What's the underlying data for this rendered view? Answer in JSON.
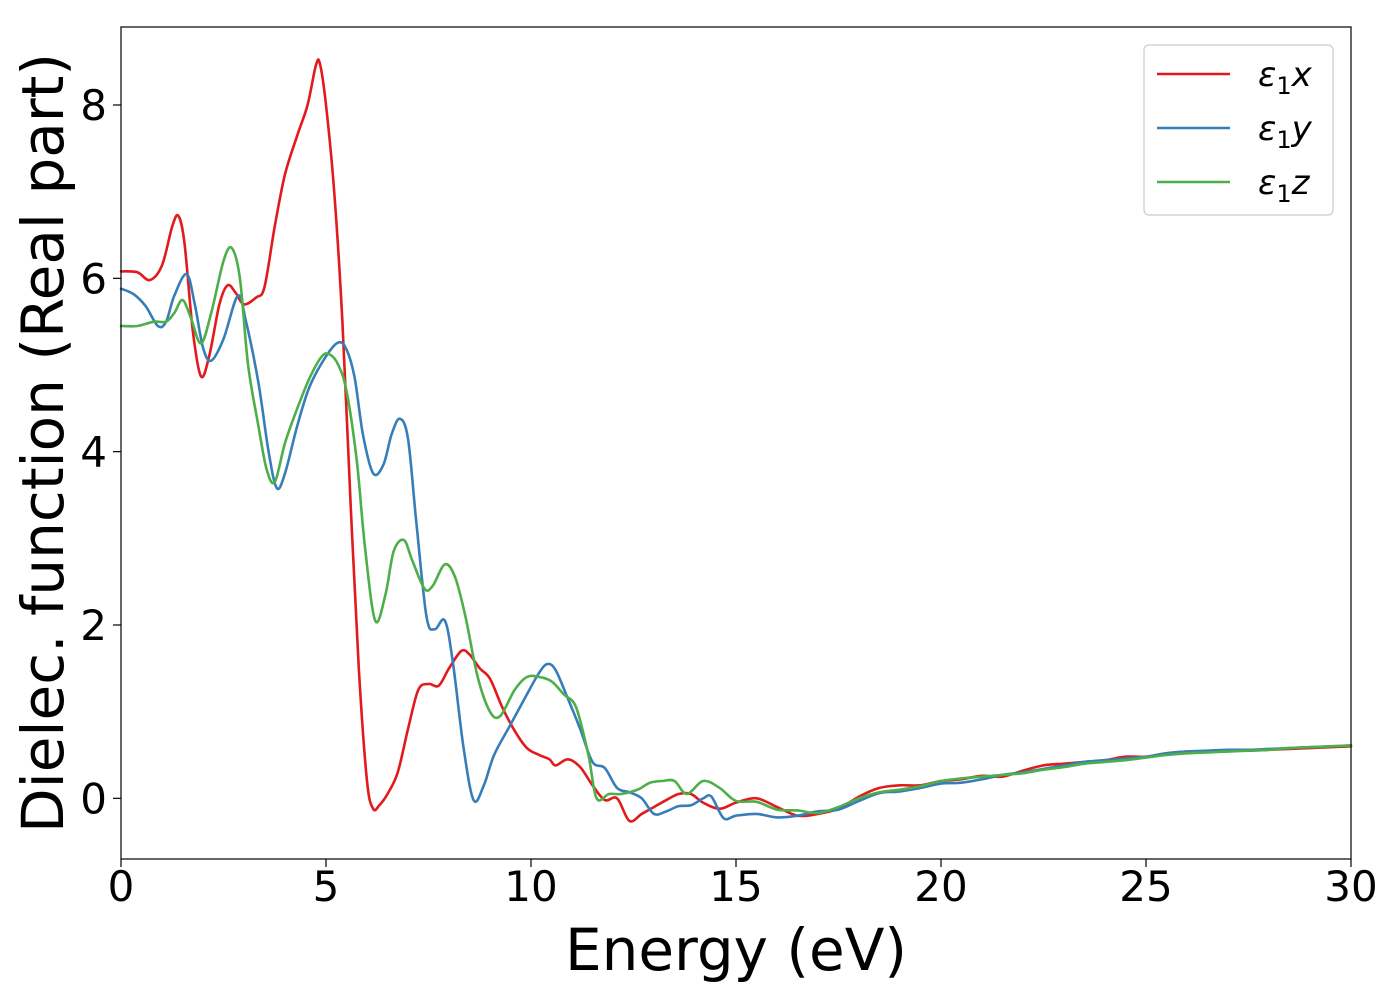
{
  "chart_data": {
    "type": "line",
    "title": "",
    "xlabel": "Energy (eV)",
    "ylabel": "Dielec. function (Real part)",
    "xlim": [
      0,
      30
    ],
    "ylim": [
      -0.7,
      8.9
    ],
    "xticks": [
      0,
      5,
      10,
      15,
      20,
      25,
      30
    ],
    "yticks": [
      0,
      2,
      4,
      6,
      8
    ],
    "grid": false,
    "legend_position": "top-right",
    "series": [
      {
        "name": "ε1x",
        "legend_base": "ε",
        "legend_sub": "1",
        "legend_var": "x",
        "color": "#e31a1c",
        "points": [
          [
            0,
            6.08
          ],
          [
            0.4,
            6.07
          ],
          [
            0.7,
            5.98
          ],
          [
            1.0,
            6.15
          ],
          [
            1.25,
            6.6
          ],
          [
            1.4,
            6.72
          ],
          [
            1.55,
            6.4
          ],
          [
            1.75,
            5.4
          ],
          [
            1.95,
            4.87
          ],
          [
            2.15,
            5.1
          ],
          [
            2.4,
            5.7
          ],
          [
            2.6,
            5.92
          ],
          [
            2.8,
            5.83
          ],
          [
            3.0,
            5.7
          ],
          [
            3.3,
            5.78
          ],
          [
            3.5,
            5.9
          ],
          [
            3.75,
            6.6
          ],
          [
            4.0,
            7.2
          ],
          [
            4.3,
            7.65
          ],
          [
            4.55,
            8.0
          ],
          [
            4.75,
            8.45
          ],
          [
            4.85,
            8.48
          ],
          [
            5.0,
            8.0
          ],
          [
            5.2,
            7.0
          ],
          [
            5.4,
            5.5
          ],
          [
            5.6,
            3.4
          ],
          [
            5.8,
            1.5
          ],
          [
            6.0,
            0.2
          ],
          [
            6.15,
            -0.12
          ],
          [
            6.3,
            -0.08
          ],
          [
            6.5,
            0.05
          ],
          [
            6.75,
            0.3
          ],
          [
            7.0,
            0.8
          ],
          [
            7.25,
            1.25
          ],
          [
            7.5,
            1.32
          ],
          [
            7.75,
            1.3
          ],
          [
            8.0,
            1.5
          ],
          [
            8.3,
            1.7
          ],
          [
            8.5,
            1.66
          ],
          [
            8.75,
            1.5
          ],
          [
            9.0,
            1.38
          ],
          [
            9.3,
            1.05
          ],
          [
            9.6,
            0.78
          ],
          [
            9.9,
            0.58
          ],
          [
            10.2,
            0.5
          ],
          [
            10.45,
            0.45
          ],
          [
            10.6,
            0.38
          ],
          [
            10.9,
            0.45
          ],
          [
            11.2,
            0.36
          ],
          [
            11.5,
            0.15
          ],
          [
            11.8,
            -0.02
          ],
          [
            12.1,
            0.0
          ],
          [
            12.4,
            -0.26
          ],
          [
            12.7,
            -0.18
          ],
          [
            13.0,
            -0.1
          ],
          [
            13.3,
            -0.02
          ],
          [
            13.6,
            0.05
          ],
          [
            13.9,
            0.05
          ],
          [
            14.2,
            -0.05
          ],
          [
            14.6,
            -0.12
          ],
          [
            15.0,
            -0.05
          ],
          [
            15.5,
            0.0
          ],
          [
            16.0,
            -0.1
          ],
          [
            16.5,
            -0.2
          ],
          [
            17.0,
            -0.18
          ],
          [
            17.5,
            -0.12
          ],
          [
            18.0,
            0.02
          ],
          [
            18.5,
            0.12
          ],
          [
            19.0,
            0.15
          ],
          [
            19.5,
            0.15
          ],
          [
            20.0,
            0.2
          ],
          [
            20.5,
            0.22
          ],
          [
            21.0,
            0.26
          ],
          [
            21.5,
            0.25
          ],
          [
            22.0,
            0.32
          ],
          [
            22.5,
            0.38
          ],
          [
            23.0,
            0.4
          ],
          [
            23.5,
            0.42
          ],
          [
            24.0,
            0.44
          ],
          [
            24.5,
            0.48
          ],
          [
            25.0,
            0.48
          ],
          [
            25.5,
            0.52
          ],
          [
            26.0,
            0.54
          ],
          [
            26.5,
            0.54
          ],
          [
            27.0,
            0.55
          ],
          [
            27.5,
            0.55
          ],
          [
            28.0,
            0.56
          ],
          [
            28.5,
            0.57
          ],
          [
            29.0,
            0.58
          ],
          [
            29.5,
            0.59
          ],
          [
            30.0,
            0.6
          ]
        ]
      },
      {
        "name": "ε1y",
        "legend_base": "ε",
        "legend_sub": "1",
        "legend_var": "y",
        "color": "#377eb8",
        "points": [
          [
            0,
            5.88
          ],
          [
            0.3,
            5.82
          ],
          [
            0.6,
            5.68
          ],
          [
            0.9,
            5.45
          ],
          [
            1.1,
            5.5
          ],
          [
            1.3,
            5.8
          ],
          [
            1.6,
            6.05
          ],
          [
            1.8,
            5.7
          ],
          [
            2.0,
            5.2
          ],
          [
            2.2,
            5.05
          ],
          [
            2.5,
            5.3
          ],
          [
            2.85,
            5.8
          ],
          [
            3.05,
            5.5
          ],
          [
            3.35,
            4.8
          ],
          [
            3.6,
            4.0
          ],
          [
            3.8,
            3.58
          ],
          [
            4.0,
            3.75
          ],
          [
            4.3,
            4.3
          ],
          [
            4.6,
            4.75
          ],
          [
            5.0,
            5.1
          ],
          [
            5.3,
            5.26
          ],
          [
            5.5,
            5.18
          ],
          [
            5.7,
            4.85
          ],
          [
            5.9,
            4.2
          ],
          [
            6.15,
            3.75
          ],
          [
            6.4,
            3.85
          ],
          [
            6.6,
            4.2
          ],
          [
            6.8,
            4.38
          ],
          [
            7.0,
            4.15
          ],
          [
            7.2,
            3.2
          ],
          [
            7.45,
            2.1
          ],
          [
            7.65,
            1.95
          ],
          [
            7.9,
            2.05
          ],
          [
            8.1,
            1.55
          ],
          [
            8.35,
            0.6
          ],
          [
            8.6,
            -0.02
          ],
          [
            8.85,
            0.15
          ],
          [
            9.1,
            0.5
          ],
          [
            9.5,
            0.85
          ],
          [
            9.9,
            1.2
          ],
          [
            10.2,
            1.45
          ],
          [
            10.4,
            1.55
          ],
          [
            10.6,
            1.48
          ],
          [
            10.9,
            1.15
          ],
          [
            11.2,
            0.8
          ],
          [
            11.5,
            0.42
          ],
          [
            11.8,
            0.35
          ],
          [
            12.1,
            0.12
          ],
          [
            12.4,
            0.07
          ],
          [
            12.7,
            0.0
          ],
          [
            13.0,
            -0.18
          ],
          [
            13.3,
            -0.15
          ],
          [
            13.6,
            -0.09
          ],
          [
            13.9,
            -0.08
          ],
          [
            14.2,
            0.0
          ],
          [
            14.4,
            0.02
          ],
          [
            14.7,
            -0.23
          ],
          [
            15.0,
            -0.2
          ],
          [
            15.5,
            -0.18
          ],
          [
            16.0,
            -0.22
          ],
          [
            16.5,
            -0.2
          ],
          [
            17.0,
            -0.15
          ],
          [
            17.5,
            -0.13
          ],
          [
            18.0,
            -0.03
          ],
          [
            18.5,
            0.06
          ],
          [
            19.0,
            0.08
          ],
          [
            19.5,
            0.12
          ],
          [
            20.0,
            0.17
          ],
          [
            20.5,
            0.18
          ],
          [
            21.0,
            0.22
          ],
          [
            21.5,
            0.27
          ],
          [
            22.0,
            0.3
          ],
          [
            22.5,
            0.34
          ],
          [
            23.0,
            0.38
          ],
          [
            23.5,
            0.42
          ],
          [
            24.0,
            0.44
          ],
          [
            24.5,
            0.46
          ],
          [
            25.0,
            0.48
          ],
          [
            25.5,
            0.52
          ],
          [
            26.0,
            0.54
          ],
          [
            26.5,
            0.55
          ],
          [
            27.0,
            0.56
          ],
          [
            27.5,
            0.56
          ],
          [
            28.0,
            0.57
          ],
          [
            28.5,
            0.58
          ],
          [
            29.0,
            0.59
          ],
          [
            29.5,
            0.6
          ],
          [
            30.0,
            0.61
          ]
        ]
      },
      {
        "name": "ε1z",
        "legend_base": "ε",
        "legend_sub": "1",
        "legend_var": "z",
        "color": "#4daf4a",
        "points": [
          [
            0,
            5.45
          ],
          [
            0.4,
            5.45
          ],
          [
            0.8,
            5.5
          ],
          [
            1.1,
            5.5
          ],
          [
            1.3,
            5.6
          ],
          [
            1.5,
            5.75
          ],
          [
            1.7,
            5.55
          ],
          [
            1.95,
            5.25
          ],
          [
            2.2,
            5.6
          ],
          [
            2.5,
            6.2
          ],
          [
            2.7,
            6.35
          ],
          [
            2.9,
            6.0
          ],
          [
            3.1,
            5.0
          ],
          [
            3.35,
            4.3
          ],
          [
            3.55,
            3.8
          ],
          [
            3.75,
            3.65
          ],
          [
            4.0,
            4.1
          ],
          [
            4.3,
            4.5
          ],
          [
            4.6,
            4.85
          ],
          [
            4.9,
            5.1
          ],
          [
            5.1,
            5.12
          ],
          [
            5.3,
            5.0
          ],
          [
            5.5,
            4.7
          ],
          [
            5.75,
            3.9
          ],
          [
            5.95,
            2.9
          ],
          [
            6.2,
            2.05
          ],
          [
            6.45,
            2.35
          ],
          [
            6.65,
            2.85
          ],
          [
            6.9,
            2.98
          ],
          [
            7.1,
            2.75
          ],
          [
            7.4,
            2.42
          ],
          [
            7.6,
            2.45
          ],
          [
            7.9,
            2.7
          ],
          [
            8.15,
            2.55
          ],
          [
            8.4,
            2.1
          ],
          [
            8.7,
            1.4
          ],
          [
            9.0,
            1.0
          ],
          [
            9.25,
            0.95
          ],
          [
            9.6,
            1.25
          ],
          [
            9.9,
            1.4
          ],
          [
            10.2,
            1.4
          ],
          [
            10.5,
            1.35
          ],
          [
            10.8,
            1.2
          ],
          [
            11.1,
            1.05
          ],
          [
            11.4,
            0.5
          ],
          [
            11.6,
            0.0
          ],
          [
            11.9,
            0.05
          ],
          [
            12.2,
            0.05
          ],
          [
            12.6,
            0.1
          ],
          [
            12.9,
            0.18
          ],
          [
            13.2,
            0.2
          ],
          [
            13.5,
            0.2
          ],
          [
            13.8,
            0.05
          ],
          [
            14.2,
            0.2
          ],
          [
            14.6,
            0.12
          ],
          [
            15.0,
            -0.03
          ],
          [
            15.5,
            -0.04
          ],
          [
            16.0,
            -0.13
          ],
          [
            16.5,
            -0.14
          ],
          [
            17.0,
            -0.17
          ],
          [
            17.5,
            -0.1
          ],
          [
            18.0,
            0.0
          ],
          [
            18.5,
            0.07
          ],
          [
            19.0,
            0.1
          ],
          [
            19.5,
            0.14
          ],
          [
            20.0,
            0.2
          ],
          [
            20.5,
            0.23
          ],
          [
            21.0,
            0.25
          ],
          [
            21.5,
            0.27
          ],
          [
            22.0,
            0.29
          ],
          [
            22.5,
            0.33
          ],
          [
            23.0,
            0.36
          ],
          [
            23.5,
            0.4
          ],
          [
            24.0,
            0.42
          ],
          [
            24.5,
            0.44
          ],
          [
            25.0,
            0.47
          ],
          [
            25.5,
            0.5
          ],
          [
            26.0,
            0.52
          ],
          [
            26.5,
            0.53
          ],
          [
            27.0,
            0.54
          ],
          [
            27.5,
            0.55
          ],
          [
            28.0,
            0.56
          ],
          [
            28.5,
            0.58
          ],
          [
            29.0,
            0.59
          ],
          [
            29.5,
            0.6
          ],
          [
            30.0,
            0.61
          ]
        ]
      }
    ]
  }
}
